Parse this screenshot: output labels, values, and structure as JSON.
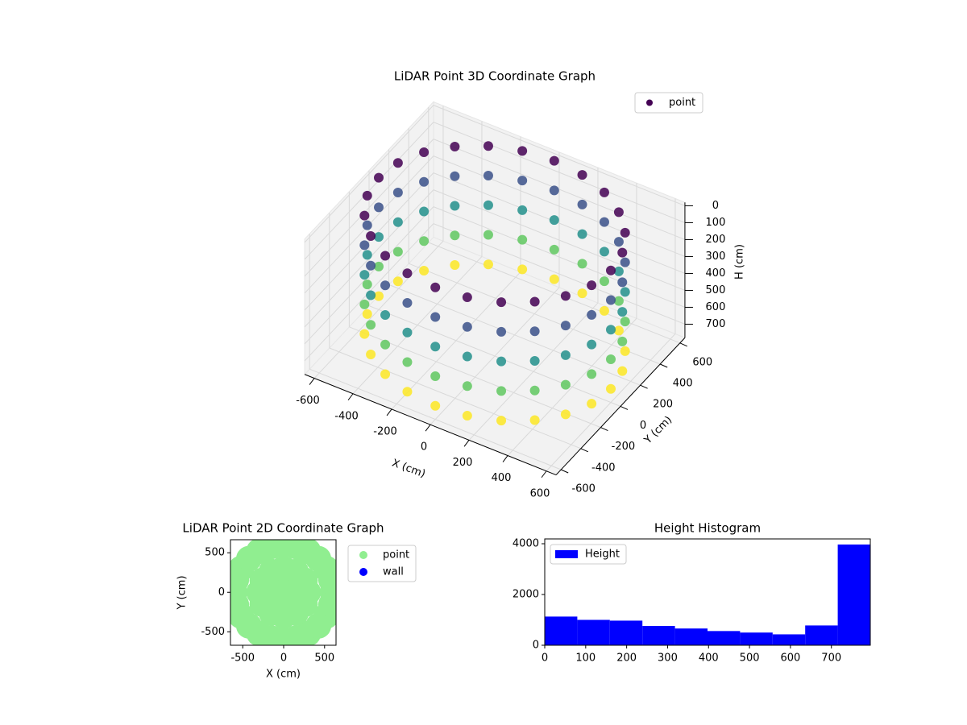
{
  "chart_data": [
    {
      "type": "scatter3d",
      "title": "LiDAR Point 3D Coordinate Graph",
      "xlabel": "X (cm)",
      "ylabel": "Y (cm)",
      "zlabel": "H (cm)",
      "legend": "upper right",
      "colormap": "viridis",
      "z_inverted": true,
      "xlim": [
        -650,
        650
      ],
      "ylim": [
        -650,
        650
      ],
      "zlim": [
        -20,
        780
      ],
      "xticks": [
        -600,
        -400,
        -200,
        0,
        200,
        400,
        600
      ],
      "yticks": [
        -600,
        -400,
        -200,
        0,
        200,
        400,
        600
      ],
      "zticks": [
        0,
        100,
        200,
        300,
        400,
        500,
        600,
        700
      ],
      "series": [
        {
          "name": "point",
          "x": [
            600,
            580,
            520,
            424,
            300,
            155,
            0,
            -155,
            -300,
            -424,
            -520,
            -580,
            -600,
            -580,
            -520,
            -424,
            -300,
            -155,
            0,
            155,
            300,
            424,
            520,
            580,
            600,
            580,
            520,
            424,
            300,
            155,
            0,
            -155,
            -300,
            -424,
            -520,
            -580,
            -600,
            -580,
            -520,
            -424,
            -300,
            -155,
            0,
            155,
            300,
            424,
            520,
            580,
            600,
            580,
            520,
            424,
            300,
            155,
            0,
            -155,
            -300,
            -424,
            -520,
            -580,
            -600,
            -580,
            -520,
            -424,
            -300,
            -155,
            0,
            155,
            300,
            424,
            520,
            580,
            600,
            580,
            520,
            424,
            300,
            155,
            0,
            -155,
            -300,
            -424,
            -520,
            -580,
            -600,
            -580,
            -520,
            -424,
            -300,
            -155,
            0,
            155,
            300,
            424,
            520,
            580,
            600,
            580,
            520,
            424,
            300,
            155,
            0,
            -155,
            -300,
            -424,
            -520,
            -580,
            -600,
            -580,
            -520,
            -424,
            -300,
            -155,
            0,
            155,
            300,
            424,
            520,
            580
          ],
          "y": [
            0,
            155,
            300,
            424,
            520,
            580,
            600,
            580,
            520,
            424,
            300,
            155,
            0,
            -155,
            -300,
            -424,
            -520,
            -580,
            -600,
            -580,
            -520,
            -424,
            -300,
            -155,
            0,
            155,
            300,
            424,
            520,
            580,
            600,
            580,
            520,
            424,
            300,
            155,
            0,
            -155,
            -300,
            -424,
            -520,
            -580,
            -600,
            -580,
            -520,
            -424,
            -300,
            -155,
            0,
            155,
            300,
            424,
            520,
            580,
            600,
            580,
            520,
            424,
            300,
            155,
            0,
            -155,
            -300,
            -424,
            -520,
            -580,
            -600,
            -580,
            -520,
            -424,
            -300,
            -155,
            0,
            155,
            300,
            424,
            520,
            580,
            600,
            580,
            520,
            424,
            300,
            155,
            0,
            -155,
            -300,
            -424,
            -520,
            -580,
            -600,
            -580,
            -520,
            -424,
            -300,
            -155,
            0,
            155,
            300,
            424,
            520,
            580,
            600,
            580,
            520,
            424,
            300,
            155,
            0,
            -155,
            -300,
            -424,
            -520,
            -580,
            -600,
            -580,
            -520,
            -424,
            -300,
            -155
          ],
          "z": [
            0,
            0,
            0,
            0,
            0,
            0,
            0,
            0,
            0,
            0,
            0,
            0,
            0,
            0,
            0,
            0,
            0,
            0,
            0,
            0,
            0,
            0,
            0,
            0,
            175,
            175,
            175,
            175,
            175,
            175,
            175,
            175,
            175,
            175,
            175,
            175,
            175,
            175,
            175,
            175,
            175,
            175,
            175,
            175,
            175,
            175,
            175,
            175,
            350,
            350,
            350,
            350,
            350,
            350,
            350,
            350,
            350,
            350,
            350,
            350,
            350,
            350,
            350,
            350,
            350,
            350,
            350,
            350,
            350,
            350,
            350,
            350,
            525,
            525,
            525,
            525,
            525,
            525,
            525,
            525,
            525,
            525,
            525,
            525,
            525,
            525,
            525,
            525,
            525,
            525,
            525,
            525,
            525,
            525,
            525,
            525,
            700,
            700,
            700,
            700,
            700,
            700,
            700,
            700,
            700,
            700,
            700,
            700,
            700,
            700,
            700,
            700,
            700,
            700,
            700,
            700,
            700,
            700,
            700,
            700
          ]
        }
      ]
    },
    {
      "type": "scatter",
      "title": "LiDAR Point 2D Coordinate Graph",
      "xlabel": "X (cm)",
      "ylabel": "Y (cm)",
      "legend": "outside right",
      "xlim": [
        -650,
        640
      ],
      "ylim": [
        -670,
        665
      ],
      "xticks": [
        -500,
        0,
        500
      ],
      "yticks": [
        -500,
        0,
        500
      ],
      "series": [
        {
          "name": "point",
          "color": "#90ee90",
          "x": [
            600,
            580,
            520,
            424,
            300,
            155,
            0,
            -155,
            -300,
            -424,
            -520,
            -580,
            -600,
            -580,
            -520,
            -424,
            -300,
            -155,
            0,
            155,
            300,
            424,
            520,
            580,
            300,
            260,
            150,
            0,
            -150,
            -260,
            -300,
            -260,
            -150,
            0,
            150,
            260,
            0
          ],
          "y": [
            0,
            155,
            300,
            424,
            520,
            580,
            600,
            580,
            520,
            424,
            300,
            155,
            0,
            -155,
            -300,
            -424,
            -520,
            -580,
            -600,
            -580,
            -520,
            -424,
            -300,
            -155,
            0,
            150,
            260,
            300,
            260,
            150,
            0,
            -150,
            -260,
            -300,
            -260,
            -150,
            0
          ]
        },
        {
          "name": "wall",
          "color": "#0000ff",
          "x": [],
          "y": []
        }
      ]
    },
    {
      "type": "histogram",
      "title": "Height Histogram",
      "legend": "upper left",
      "xlim": [
        0,
        795
      ],
      "ylim": [
        0,
        4190
      ],
      "xticks": [
        0,
        100,
        200,
        300,
        400,
        500,
        600,
        700
      ],
      "yticks": [
        0,
        2000,
        4000
      ],
      "series": [
        {
          "name": "Height",
          "color": "#0000ff",
          "bins": [
            0,
            79.5,
            159,
            238.5,
            318,
            397.5,
            477,
            556.5,
            636,
            715.5,
            795
          ],
          "values": [
            1130,
            1000,
            970,
            760,
            660,
            560,
            500,
            430,
            780,
            3970
          ]
        }
      ]
    }
  ]
}
